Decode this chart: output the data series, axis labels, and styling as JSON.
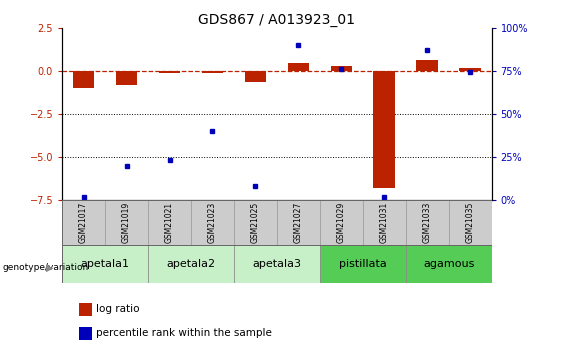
{
  "title": "GDS867 / A013923_01",
  "samples": [
    "GSM21017",
    "GSM21019",
    "GSM21021",
    "GSM21023",
    "GSM21025",
    "GSM21027",
    "GSM21029",
    "GSM21031",
    "GSM21033",
    "GSM21035"
  ],
  "log_ratio": [
    -1.0,
    -0.85,
    -0.15,
    -0.15,
    -0.65,
    0.45,
    0.25,
    -6.8,
    0.65,
    0.15
  ],
  "percentile_rank": [
    2,
    20,
    23,
    40,
    8,
    90,
    76,
    2,
    87,
    74
  ],
  "groups": [
    {
      "label": "apetala1",
      "start": 0,
      "end": 2
    },
    {
      "label": "apetala2",
      "start": 2,
      "end": 4
    },
    {
      "label": "apetala3",
      "start": 4,
      "end": 6
    },
    {
      "label": "pistillata",
      "start": 6,
      "end": 8
    },
    {
      "label": "agamous",
      "start": 8,
      "end": 10
    }
  ],
  "group_colors": {
    "apetala1": "#c8f0c8",
    "apetala2": "#c8f0c8",
    "apetala3": "#c8f0c8",
    "pistillata": "#55cc55",
    "agamous": "#55cc55"
  },
  "ylim_left": [
    -7.5,
    2.5
  ],
  "ylim_right": [
    0,
    100
  ],
  "right_ticks": [
    0,
    25,
    50,
    75,
    100
  ],
  "right_tick_labels": [
    "0%",
    "25%",
    "50%",
    "75%",
    "100%"
  ],
  "left_ticks": [
    -7.5,
    -5.0,
    -2.5,
    0.0,
    2.5
  ],
  "bar_color": "#bb2200",
  "dot_color": "#0000bb",
  "dashed_line_color": "#bb2200",
  "sample_box_color": "#cccccc",
  "group_label_fontsize": 8,
  "title_fontsize": 10,
  "tick_label_fontsize": 7,
  "legend_fontsize": 7.5,
  "sample_label_fontsize": 5.5
}
